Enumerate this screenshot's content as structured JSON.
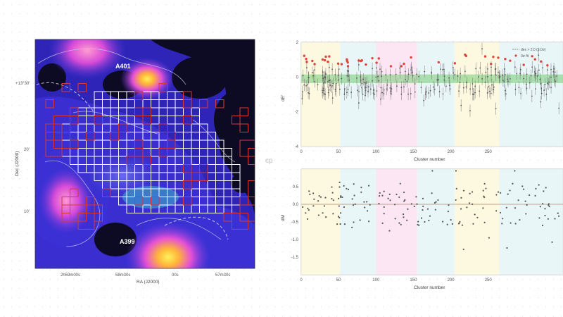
{
  "left_panel": {
    "annotations": [
      "A401",
      "A399"
    ],
    "ylabel": "Dec (J2000)",
    "xlabel": "RA (J2000)",
    "yticks": [
      "+13°30'",
      "20'",
      "10'"
    ],
    "xticks": [
      "2h59m00s",
      "58m30s",
      "00s",
      "57m30s"
    ],
    "colors": {
      "background": "#0d0a24",
      "diffuse": "#3b2ed0",
      "bright": "#d64ad8",
      "core": "#ffd23a",
      "grid_white": "#ffffff",
      "grid_red": "#d43a3a"
    }
  },
  "corner_text": "cp",
  "chart_data": [
    {
      "type": "scatter",
      "ylabel": "dE'",
      "xlabel": "Cluster number",
      "ylim": [
        -4,
        2
      ],
      "xlim": [
        0,
        350
      ],
      "yticks": [
        "2",
        "0",
        "-2",
        "-4"
      ],
      "xticks": [
        "0",
        "50",
        "100",
        "150",
        "200",
        "250"
      ],
      "legend": [
        "dex > 2.0 (3.0σ)",
        "3σ fit"
      ],
      "legend_position": "top-right",
      "band": {
        "from": -0.35,
        "to": 0.15,
        "color": "#7fd07f"
      },
      "colors": {
        "points": "#555555",
        "outliers": "#e0443a"
      }
    },
    {
      "type": "scatter",
      "ylabel": "dM",
      "xlabel": "Cluster number",
      "ylim": [
        -2.0,
        1.0
      ],
      "xlim": [
        0,
        350
      ],
      "yticks": [
        "0.5",
        "0.0",
        "-0.5",
        "-1.0",
        "-1.5"
      ],
      "xticks": [
        "0",
        "50",
        "100",
        "150",
        "200",
        "250"
      ],
      "reference_line": 0.0,
      "colors": {
        "points": "#555555",
        "reference": "#b08a6a"
      }
    }
  ]
}
